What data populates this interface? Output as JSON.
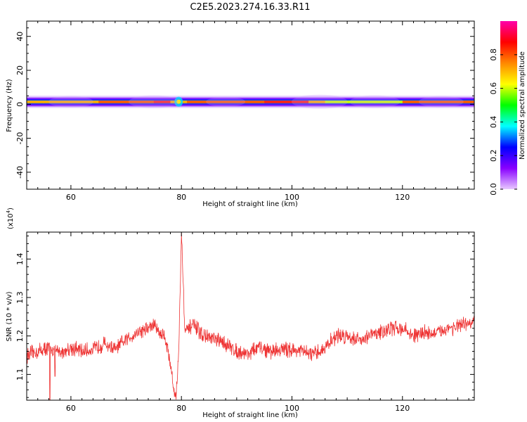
{
  "title": "C2E5.2023.274.16.33.R11",
  "chart_data": [
    {
      "type": "heatmap",
      "xlabel": "Height of straight line (km)",
      "ylabel": "Frequency (Hz)",
      "xlim": [
        52,
        133
      ],
      "ylim": [
        -50,
        49
      ],
      "xticks": [
        60,
        80,
        100,
        120
      ],
      "yticks": [
        -40,
        -20,
        0,
        20,
        40
      ],
      "band": {
        "freq_center": 1.5,
        "freq_halfwidth": 3,
        "amplitude_profile": [
          {
            "x": 52,
            "v": 0.78
          },
          {
            "x": 55,
            "v": 0.74
          },
          {
            "x": 60,
            "v": 0.72
          },
          {
            "x": 65,
            "v": 0.75
          },
          {
            "x": 70,
            "v": 0.82
          },
          {
            "x": 75,
            "v": 0.86
          },
          {
            "x": 78,
            "v": 0.9
          },
          {
            "x": 79.5,
            "v": 0.55
          },
          {
            "x": 81,
            "v": 0.88
          },
          {
            "x": 85,
            "v": 0.8
          },
          {
            "x": 90,
            "v": 0.82
          },
          {
            "x": 95,
            "v": 0.88
          },
          {
            "x": 100,
            "v": 0.9
          },
          {
            "x": 103,
            "v": 0.86
          },
          {
            "x": 106,
            "v": 0.65
          },
          {
            "x": 110,
            "v": 0.7
          },
          {
            "x": 115,
            "v": 0.55
          },
          {
            "x": 120,
            "v": 0.82
          },
          {
            "x": 125,
            "v": 0.85
          },
          {
            "x": 130,
            "v": 0.84
          },
          {
            "x": 133,
            "v": 0.82
          }
        ]
      },
      "colorbar": {
        "label": "Normalized spectral amplitude",
        "range": [
          0,
          1
        ],
        "ticks": [
          "0.0",
          "0.2",
          "0.4",
          "0.6",
          "0.8"
        ],
        "tick_values": [
          0,
          0.2,
          0.4,
          0.6,
          0.8
        ],
        "colors": [
          "#e8c8ff",
          "#8800ff",
          "#0000ff",
          "#00ffff",
          "#00ff00",
          "#ffff00",
          "#ff8800",
          "#ff0000",
          "#ff00aa"
        ]
      }
    },
    {
      "type": "line",
      "xlabel": "Height of straight line (km)",
      "ylabel": "SNR (10 * v/v)",
      "yscale_label": "(x10",
      "yscale_exp": "4",
      "yscale_close": ")",
      "xlim": [
        52,
        133
      ],
      "ylim": [
        10330,
        14700
      ],
      "xticks": [
        60,
        80,
        100,
        120
      ],
      "yticks": [
        11000,
        12000,
        13000,
        14000
      ],
      "ytick_labels": [
        "1.1",
        "1.2",
        "1.3",
        "1.4"
      ],
      "series": [
        {
          "color": "#ee3333",
          "noise": 300,
          "x": [
            52,
            54,
            56,
            57,
            58,
            60,
            62,
            64,
            66,
            68,
            70,
            72,
            74,
            75,
            76,
            77,
            78,
            78.5,
            79,
            79.5,
            80,
            80.3,
            80.6,
            81,
            82,
            84,
            86,
            88,
            90,
            92,
            94,
            96,
            98,
            100,
            102,
            104,
            106,
            108,
            110,
            112,
            114,
            116,
            118,
            120,
            122,
            124,
            126,
            128,
            130,
            133
          ],
          "y": [
            11500,
            11600,
            11700,
            11650,
            11550,
            11700,
            11600,
            11650,
            11800,
            11650,
            11900,
            12100,
            12200,
            12300,
            12100,
            12000,
            11300,
            10700,
            10400,
            11500,
            14700,
            13500,
            12200,
            12100,
            12300,
            12000,
            11900,
            11800,
            11600,
            11550,
            11700,
            11600,
            11650,
            11650,
            11600,
            11500,
            11700,
            12000,
            12000,
            11900,
            12000,
            12100,
            12200,
            12200,
            12000,
            12100,
            12050,
            12200,
            12250,
            12350
          ]
        }
      ],
      "dips": [
        {
          "x": 56.2,
          "y": 10330
        },
        {
          "x": 57.1,
          "y": 10950
        }
      ]
    }
  ]
}
